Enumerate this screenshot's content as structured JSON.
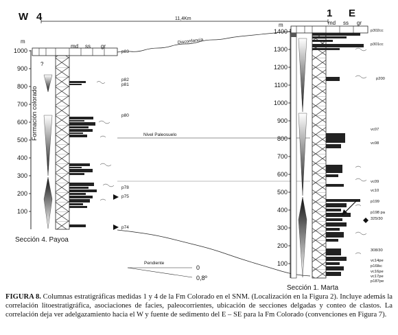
{
  "figure": {
    "left_column": {
      "header_letter": "W",
      "header_number": "4",
      "unit": "m",
      "facies_headers": [
        "md",
        "ss",
        "gr"
      ],
      "axis_ticks": [
        "1000",
        "900",
        "800",
        "700",
        "600",
        "500",
        "400",
        "300",
        "200",
        "100"
      ],
      "formation_label": "Formación colorado",
      "question_mark": "?",
      "section_label": "Sección 4. Payoa",
      "sample_labels": [
        "p83",
        "p82",
        "p81",
        "p80",
        "p78",
        "p75",
        "p74"
      ]
    },
    "right_column": {
      "header_number": "1",
      "header_letter": "E",
      "unit": "m",
      "facies_headers": [
        "md",
        "ss",
        "gr"
      ],
      "axis_ticks": [
        "1400",
        "1300",
        "1200",
        "1100",
        "1000",
        "900",
        "800",
        "700",
        "600",
        "500",
        "400",
        "300",
        "200",
        "100"
      ],
      "section_label": "Sección 1. Marta",
      "sample_labels": [
        "p302cc",
        "p301cc",
        "p200",
        "vc07",
        "vc08",
        "vc09",
        "vc10",
        "p199",
        "p198 pa",
        "325/30",
        "308/30",
        "vc14pe",
        "p16Ikc",
        "vc16pe",
        "vc17pe",
        "p187pe"
      ]
    },
    "distance_label": "11,4Km",
    "discordance_label": "Discordancia",
    "marker_bed_label": "Nivel Paleosuelo",
    "slope_legend": {
      "title": "Pendiente",
      "values": [
        "0",
        "0,8º"
      ]
    }
  },
  "caption": {
    "label": "FIGURA 8.",
    "text": " Columnas estratigráficas medidas 1 y 4 de la Fm Colorado en el SNM. (Localización en la Figura 2). Incluye además la correlación litoestratigráfica, asociaciones de facies, paleocorrientes, ubicación de secciones delgadas y conteo de clastos. La correlación deja ver adelgazamiento hacia el W y fuente de sedimento del E – SE para la Fm Colorado (convenciones en Figura 7)."
  }
}
